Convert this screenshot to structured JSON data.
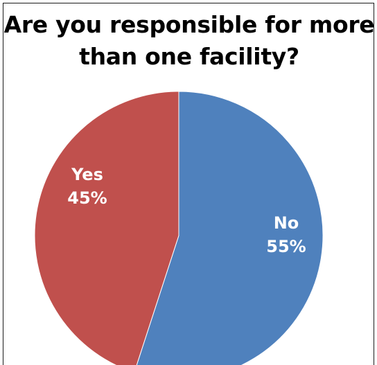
{
  "chart_data": {
    "type": "pie",
    "title_lines": [
      "Are you responsible for more",
      "than one facility?"
    ],
    "slices": [
      {
        "label": "No",
        "value": 55,
        "value_text": "55%",
        "color": "#4f81bd"
      },
      {
        "label": "Yes",
        "value": 45,
        "value_text": "45%",
        "color": "#c0504d"
      }
    ]
  }
}
